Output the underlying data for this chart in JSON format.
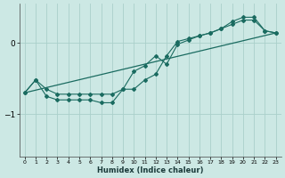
{
  "xlabel": "Humidex (Indice chaleur)",
  "bg_color": "#cce8e4",
  "line_color": "#1a6b60",
  "grid_color": "#aacfca",
  "xlim": [
    -0.5,
    23.5
  ],
  "ylim": [
    -1.6,
    0.55
  ],
  "yticks": [
    0,
    -1
  ],
  "xticks": [
    0,
    1,
    2,
    3,
    4,
    5,
    6,
    7,
    8,
    9,
    10,
    11,
    12,
    13,
    14,
    15,
    16,
    17,
    18,
    19,
    20,
    21,
    22,
    23
  ],
  "series1_x": [
    0,
    1,
    2,
    3,
    4,
    5,
    6,
    7,
    8,
    9,
    10,
    11,
    12,
    13,
    14,
    15,
    16,
    17,
    18,
    19,
    20,
    21,
    22,
    23
  ],
  "series1_y": [
    -0.7,
    -0.52,
    -0.65,
    -0.72,
    -0.72,
    -0.72,
    -0.72,
    -0.72,
    -0.72,
    -0.65,
    -0.4,
    -0.32,
    -0.18,
    -0.3,
    -0.02,
    0.04,
    0.1,
    0.14,
    0.2,
    0.26,
    0.32,
    0.32,
    0.17,
    0.14
  ],
  "series2_x": [
    0,
    1,
    2,
    3,
    4,
    5,
    6,
    7,
    8,
    9,
    10,
    11,
    12,
    13,
    14,
    15,
    16,
    17,
    18,
    19,
    20,
    21,
    22,
    23
  ],
  "series2_y": [
    -0.7,
    -0.52,
    -0.75,
    -0.8,
    -0.8,
    -0.8,
    -0.8,
    -0.84,
    -0.84,
    -0.65,
    -0.65,
    -0.52,
    -0.44,
    -0.18,
    0.02,
    0.06,
    0.1,
    0.14,
    0.2,
    0.3,
    0.36,
    0.36,
    0.17,
    0.14
  ],
  "series3_x": [
    0,
    23
  ],
  "series3_y": [
    -0.7,
    0.14
  ]
}
